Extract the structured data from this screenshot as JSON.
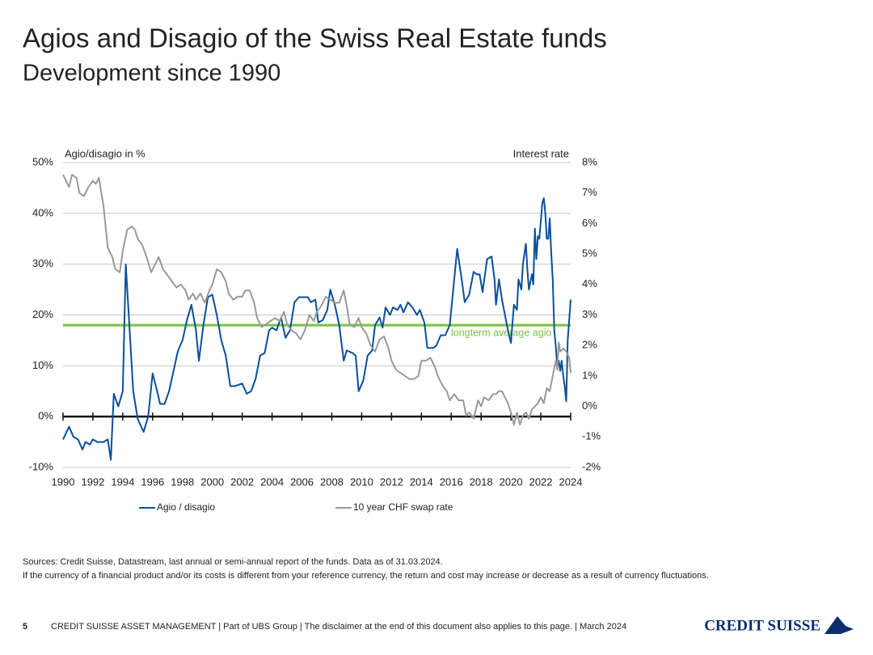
{
  "slide": {
    "title": "Agios and Disagio of the Swiss Real Estate funds",
    "subtitle": "Development since 1990",
    "sources": "Sources: Credit Suisse, Datastream, last annual or semi-annual report of the funds. Data as of 31.03.2024.",
    "disclaimer": "If the currency of a financial product and/or its costs is different from your reference currency, the return and cost may increase or decrease as a result of currency fluctuations.",
    "page_number": "5",
    "footer": "CREDIT SUISSE ASSET MANAGEMENT | Part of UBS Group | The disclaimer at the end of this document also applies to this page. | March 2024",
    "logo": "CREDIT SUISSE"
  },
  "chart_data": {
    "type": "line",
    "ylabel": "Agio/disagio in %",
    "y2label": "Interest rate",
    "xlim": [
      1990,
      2024
    ],
    "xticks": [
      1990,
      1992,
      1994,
      1996,
      1998,
      2000,
      2002,
      2004,
      2006,
      2008,
      2010,
      2012,
      2014,
      2016,
      2018,
      2020,
      2022,
      2024
    ],
    "ylim": [
      -10,
      50
    ],
    "yticks": [
      {
        "value": -10,
        "label": "-10%"
      },
      {
        "value": 0,
        "label": "0%"
      },
      {
        "value": 10,
        "label": "10%"
      },
      {
        "value": 20,
        "label": "20%"
      },
      {
        "value": 30,
        "label": "30%"
      },
      {
        "value": 40,
        "label": "40%"
      },
      {
        "value": 50,
        "label": "50%"
      }
    ],
    "y2lim": [
      -2,
      8
    ],
    "y2ticks": [
      {
        "value": -2,
        "label": "-2%"
      },
      {
        "value": -1,
        "label": "-1%"
      },
      {
        "value": 0,
        "label": "0%"
      },
      {
        "value": 1,
        "label": "1%"
      },
      {
        "value": 2,
        "label": "2%"
      },
      {
        "value": 3,
        "label": "3%"
      },
      {
        "value": 4,
        "label": "4%"
      },
      {
        "value": 5,
        "label": "5%"
      },
      {
        "value": 6,
        "label": "6%"
      },
      {
        "value": 7,
        "label": "7%"
      },
      {
        "value": 8,
        "label": "8%"
      }
    ],
    "grid": true,
    "reference_line": {
      "value": 18,
      "label": "longterm average agio",
      "color": "#7ac143"
    },
    "series": [
      {
        "name": "Agio / disagio",
        "color": "#0a4f9c",
        "axis": "y",
        "x": [
          1990.0,
          1990.4,
          1990.7,
          1991.0,
          1991.3,
          1991.5,
          1991.8,
          1992.0,
          1992.3,
          1992.7,
          1993.0,
          1993.2,
          1993.4,
          1993.7,
          1994.0,
          1994.2,
          1994.5,
          1994.7,
          1995.0,
          1995.4,
          1995.7,
          1996.0,
          1996.3,
          1996.5,
          1996.8,
          1997.1,
          1997.4,
          1997.7,
          1998.0,
          1998.3,
          1998.6,
          1998.9,
          1999.1,
          1999.4,
          1999.7,
          2000.0,
          2000.3,
          2000.6,
          2000.9,
          2001.2,
          2001.5,
          2002.0,
          2002.3,
          2002.6,
          2002.9,
          2003.2,
          2003.5,
          2003.8,
          2004.0,
          2004.3,
          2004.6,
          2004.9,
          2005.2,
          2005.5,
          2005.8,
          2006.1,
          2006.4,
          2006.6,
          2006.9,
          2007.1,
          2007.4,
          2007.7,
          2007.9,
          2008.2,
          2008.5,
          2008.8,
          2009.0,
          2009.4,
          2009.6,
          2009.8,
          2010.1,
          2010.4,
          2010.7,
          2010.9,
          2011.2,
          2011.4,
          2011.6,
          2011.9,
          2012.1,
          2012.4,
          2012.6,
          2012.8,
          2013.1,
          2013.4,
          2013.7,
          2013.9,
          2014.2,
          2014.4,
          2014.8,
          2015.0,
          2015.3,
          2015.6,
          2015.9,
          2016.1,
          2016.4,
          2016.7,
          2016.9,
          2017.2,
          2017.5,
          2017.7,
          2017.9,
          2018.1,
          2018.4,
          2018.7,
          2018.9,
          2019.0,
          2019.2,
          2019.4,
          2019.6,
          2019.8,
          2020.0,
          2020.2,
          2020.4,
          2020.5,
          2020.7,
          2020.8,
          2021.0,
          2021.1,
          2021.2,
          2021.4,
          2021.5,
          2021.6,
          2021.7,
          2021.8,
          2021.9,
          2022.1,
          2022.2,
          2022.3,
          2022.4,
          2022.5,
          2022.6,
          2022.7,
          2022.8,
          2022.9,
          2023.0,
          2023.1,
          2023.2,
          2023.3,
          2023.4,
          2023.5,
          2023.6,
          2023.7,
          2023.8,
          2024.0
        ],
        "values": [
          -4.5,
          -2,
          -4,
          -4.5,
          -6.5,
          -5,
          -5.5,
          -4.5,
          -5,
          -5,
          -4.5,
          -8.5,
          4.5,
          2,
          5,
          30,
          15,
          5,
          -0.5,
          -3,
          0,
          8.5,
          5,
          2.5,
          2.5,
          5,
          9,
          13,
          15,
          19,
          22,
          17,
          11,
          18,
          23.5,
          24,
          20,
          15,
          12,
          6,
          6,
          6.5,
          4.5,
          5,
          7.5,
          12,
          12.5,
          17,
          17.5,
          17,
          19.5,
          15.5,
          17,
          22.5,
          23.5,
          23.5,
          23.5,
          22.5,
          23,
          18.5,
          19,
          21,
          25,
          22,
          18,
          11,
          13,
          12.5,
          12,
          5,
          7,
          12,
          13,
          18,
          19.5,
          17.5,
          21.5,
          20,
          21.5,
          21,
          22,
          20.5,
          22.5,
          21.5,
          20,
          21,
          18.5,
          13.5,
          13.5,
          14,
          16,
          16,
          18,
          24,
          33,
          27,
          22.5,
          24,
          28.5,
          28,
          28,
          24.5,
          31,
          31.5,
          27,
          22,
          27,
          23,
          20,
          17,
          14.5,
          22,
          21,
          27,
          25,
          30,
          34,
          29,
          25,
          28,
          26,
          37,
          31,
          35.5,
          35,
          42,
          43,
          40,
          35,
          35,
          39,
          32,
          27,
          17,
          14,
          10,
          11,
          9,
          11,
          8,
          6,
          3,
          15,
          23
        ]
      },
      {
        "name": "10 year CHF swap rate",
        "color": "#999999",
        "axis": "y2",
        "x": [
          1990.0,
          1990.4,
          1990.6,
          1990.9,
          1991.1,
          1991.4,
          1991.7,
          1992.0,
          1992.2,
          1992.4,
          1992.7,
          1993.0,
          1993.3,
          1993.5,
          1993.8,
          1994.0,
          1994.3,
          1994.6,
          1994.8,
          1995.0,
          1995.3,
          1995.6,
          1995.9,
          1996.2,
          1996.4,
          1996.7,
          1997.0,
          1997.3,
          1997.6,
          1997.9,
          1998.2,
          1998.4,
          1998.7,
          1998.9,
          1999.2,
          1999.5,
          1999.8,
          2000.0,
          2000.3,
          2000.6,
          2000.9,
          2001.1,
          2001.4,
          2001.7,
          2002.0,
          2002.2,
          2002.5,
          2002.8,
          2003.0,
          2003.3,
          2003.6,
          2003.9,
          2004.2,
          2004.5,
          2004.8,
          2005.0,
          2005.3,
          2005.6,
          2005.9,
          2006.2,
          2006.5,
          2006.8,
          2007.0,
          2007.3,
          2007.6,
          2007.9,
          2008.2,
          2008.5,
          2008.8,
          2009.0,
          2009.2,
          2009.5,
          2009.8,
          2010.0,
          2010.3,
          2010.6,
          2010.9,
          2011.2,
          2011.5,
          2011.8,
          2012.0,
          2012.3,
          2012.6,
          2012.9,
          2013.2,
          2013.5,
          2013.8,
          2014.0,
          2014.3,
          2014.6,
          2014.9,
          2015.1,
          2015.4,
          2015.7,
          2015.9,
          2016.2,
          2016.5,
          2016.8,
          2017.0,
          2017.2,
          2017.5,
          2017.8,
          2018.0,
          2018.2,
          2018.5,
          2018.8,
          2019.0,
          2019.2,
          2019.4,
          2019.6,
          2019.8,
          2020.0,
          2020.2,
          2020.4,
          2020.6,
          2020.8,
          2021.0,
          2021.2,
          2021.4,
          2021.6,
          2021.8,
          2022.0,
          2022.2,
          2022.4,
          2022.6,
          2022.8,
          2023.0,
          2023.1,
          2023.2,
          2023.3,
          2023.5,
          2023.7,
          2023.9,
          2024.0
        ],
        "values": [
          7.6,
          7.2,
          7.6,
          7.5,
          7.0,
          6.9,
          7.2,
          7.4,
          7.3,
          7.5,
          6.6,
          5.2,
          4.9,
          4.5,
          4.4,
          5.1,
          5.8,
          5.9,
          5.8,
          5.5,
          5.3,
          4.9,
          4.4,
          4.7,
          4.9,
          4.5,
          4.3,
          4.1,
          3.9,
          4.0,
          3.8,
          3.5,
          3.7,
          3.5,
          3.7,
          3.4,
          3.8,
          4.0,
          4.5,
          4.4,
          4.1,
          3.7,
          3.5,
          3.6,
          3.6,
          3.8,
          3.8,
          3.4,
          2.9,
          2.6,
          2.7,
          2.8,
          2.9,
          2.8,
          3.1,
          2.7,
          2.5,
          2.4,
          2.2,
          2.5,
          3.0,
          2.8,
          3.1,
          3.3,
          3.6,
          3.5,
          3.4,
          3.4,
          3.8,
          3.3,
          2.7,
          2.6,
          2.9,
          2.6,
          2.4,
          2.0,
          1.8,
          2.2,
          2.3,
          1.9,
          1.5,
          1.2,
          1.1,
          1.0,
          0.9,
          0.9,
          1.0,
          1.5,
          1.5,
          1.6,
          1.3,
          1.0,
          0.7,
          0.5,
          0.2,
          0.4,
          0.2,
          0.2,
          -0.3,
          -0.2,
          -0.4,
          0.2,
          0.0,
          0.3,
          0.2,
          0.4,
          0.4,
          0.5,
          0.5,
          0.3,
          0.1,
          -0.2,
          -0.6,
          -0.2,
          -0.6,
          -0.3,
          -0.2,
          -0.4,
          -0.1,
          0.0,
          0.1,
          0.3,
          0.1,
          0.6,
          0.5,
          1.0,
          1.5,
          1.2,
          2.1,
          1.8,
          1.9,
          1.8,
          1.6,
          1.1
        ]
      }
    ]
  }
}
